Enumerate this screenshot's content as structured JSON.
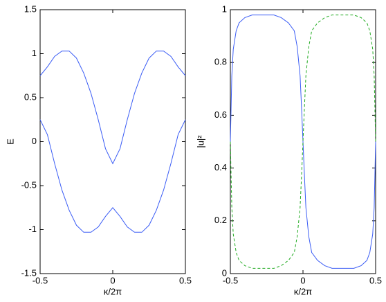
{
  "chart_data": [
    {
      "type": "line",
      "xlabel": "κ/2π",
      "ylabel": "E",
      "x": [
        -0.5,
        -0.45,
        -0.4,
        -0.35,
        -0.3,
        -0.25,
        -0.2,
        -0.15,
        -0.1,
        -0.05,
        0,
        0.05,
        0.1,
        0.15,
        0.2,
        0.25,
        0.3,
        0.35,
        0.4,
        0.45,
        0.5
      ],
      "series": [
        {
          "color": "#3a5cf5",
          "style": "solid",
          "values": [
            0.75,
            0.85,
            0.97,
            1.03,
            1.03,
            0.95,
            0.78,
            0.55,
            0.25,
            -0.08,
            -0.25,
            -0.08,
            0.25,
            0.55,
            0.78,
            0.95,
            1.03,
            1.03,
            0.97,
            0.85,
            0.75
          ]
        },
        {
          "color": "#3a5cf5",
          "style": "solid",
          "values": [
            0.25,
            0.08,
            -0.25,
            -0.55,
            -0.78,
            -0.95,
            -1.03,
            -1.03,
            -0.97,
            -0.85,
            -0.75,
            -0.85,
            -0.97,
            -1.03,
            -1.03,
            -0.95,
            -0.78,
            -0.55,
            -0.25,
            0.08,
            0.25
          ]
        }
      ],
      "xlim": [
        -0.5,
        0.5
      ],
      "xticks": [
        -0.5,
        0,
        0.5
      ],
      "ylim": [
        -1.5,
        1.5
      ],
      "yticks": [
        -1.5,
        -1,
        -0.5,
        0,
        0.5,
        1,
        1.5
      ]
    },
    {
      "type": "line",
      "xlabel": "κ/2π",
      "ylabel": "|u|²",
      "x": [
        -0.5,
        -0.49,
        -0.48,
        -0.46,
        -0.44,
        -0.4,
        -0.35,
        -0.3,
        -0.25,
        -0.2,
        -0.15,
        -0.1,
        -0.06,
        -0.04,
        -0.02,
        -0.01,
        0,
        0.01,
        0.02,
        0.04,
        0.06,
        0.1,
        0.15,
        0.2,
        0.25,
        0.3,
        0.35,
        0.4,
        0.44,
        0.46,
        0.48,
        0.49,
        0.5
      ],
      "series": [
        {
          "color": "#3a5cf5",
          "style": "solid",
          "values": [
            0.5,
            0.75,
            0.85,
            0.92,
            0.95,
            0.97,
            0.98,
            0.98,
            0.98,
            0.98,
            0.97,
            0.95,
            0.92,
            0.86,
            0.75,
            0.63,
            0.5,
            0.37,
            0.25,
            0.14,
            0.08,
            0.05,
            0.03,
            0.02,
            0.02,
            0.02,
            0.02,
            0.03,
            0.05,
            0.08,
            0.15,
            0.25,
            0.5
          ]
        },
        {
          "color": "#1faa1f",
          "style": "dashed",
          "values": [
            0.5,
            0.25,
            0.15,
            0.08,
            0.05,
            0.03,
            0.02,
            0.02,
            0.02,
            0.02,
            0.03,
            0.05,
            0.08,
            0.14,
            0.25,
            0.37,
            0.5,
            0.63,
            0.75,
            0.86,
            0.92,
            0.95,
            0.97,
            0.98,
            0.98,
            0.98,
            0.98,
            0.97,
            0.95,
            0.92,
            0.85,
            0.75,
            0.5
          ]
        }
      ],
      "xlim": [
        -0.5,
        0.5
      ],
      "xticks": [
        -0.5,
        0,
        0.5
      ],
      "ylim": [
        0,
        1
      ],
      "yticks": [
        0,
        0.2,
        0.4,
        0.6,
        0.8,
        1
      ]
    }
  ]
}
